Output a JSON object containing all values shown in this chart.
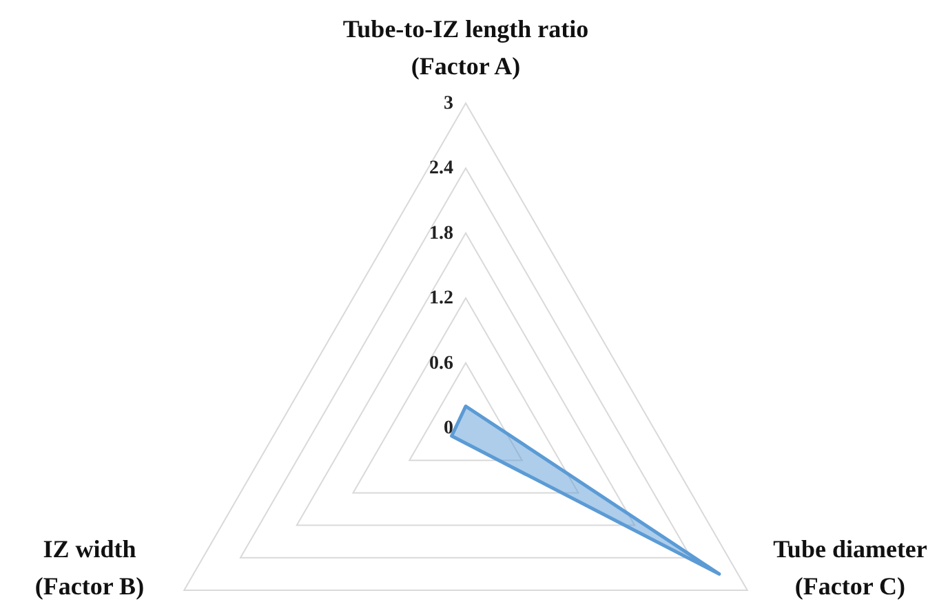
{
  "chart_data": {
    "type": "radar",
    "categories": [
      "Tube-to-IZ length ratio\n(Factor A)",
      "Tube diameter\n(Factor C)",
      "IZ width\n(Factor B)"
    ],
    "series": [
      {
        "color": "#5b9bd5",
        "values": [
          0.2,
          2.7,
          0.15
        ]
      }
    ],
    "ylim": [
      0,
      3
    ],
    "yticks": [
      0,
      0.6,
      1.2,
      1.8,
      2.4,
      3
    ],
    "grid": true
  }
}
